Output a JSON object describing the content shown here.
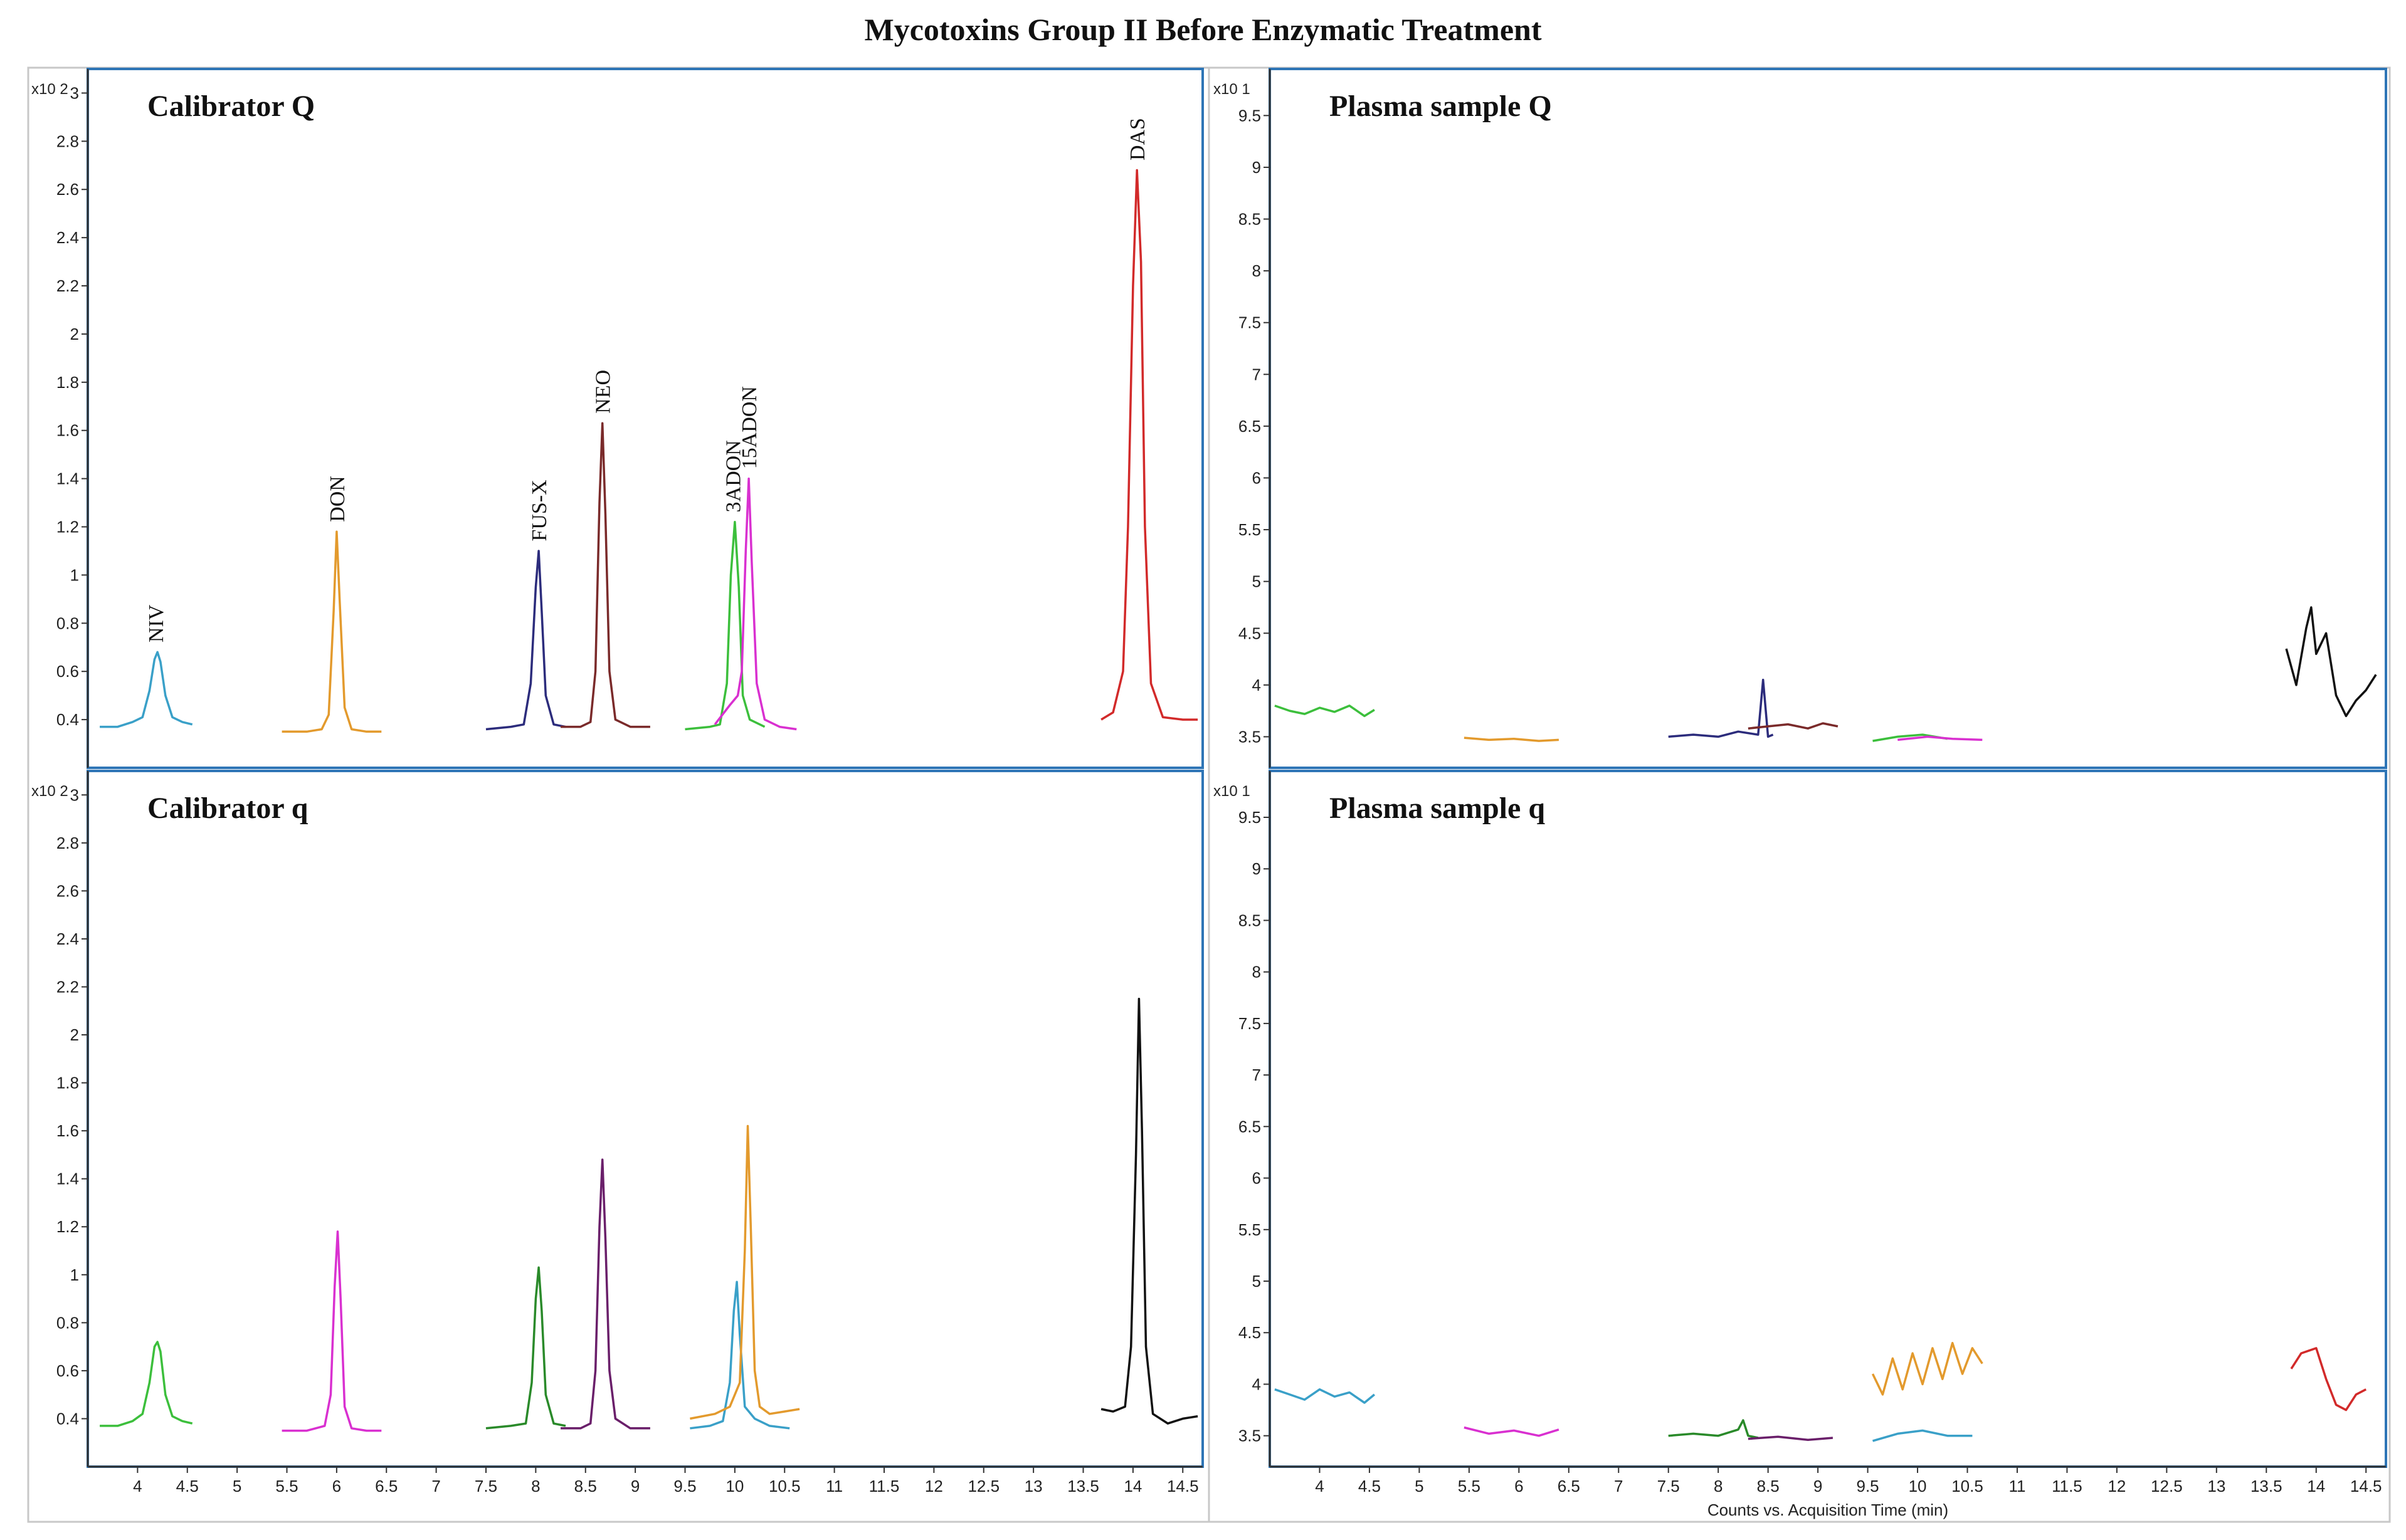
{
  "title": "Mycotoxins Group II Before Enzymatic Treatment",
  "chart_data": [
    {
      "type": "line",
      "title": "Calibrator Q",
      "y_multiplier": "x10 2",
      "xlim": [
        3.5,
        14.7
      ],
      "ylim": [
        0.2,
        3.1
      ],
      "x_ticks": [
        "4",
        "4.5",
        "5",
        "5.5",
        "6",
        "6.5",
        "7",
        "7.5",
        "8",
        "8.5",
        "9",
        "9.5",
        "10",
        "10.5",
        "11",
        "11.5",
        "12",
        "12.5",
        "13",
        "13.5",
        "14",
        "14.5"
      ],
      "y_ticks": [
        "0.4",
        "0.6",
        "0.8",
        "1",
        "1.2",
        "1.4",
        "1.6",
        "1.8",
        "2",
        "2.2",
        "2.4",
        "2.6",
        "2.8",
        "3"
      ],
      "xlabel": "",
      "series": [
        {
          "name": "NIV",
          "color": "#3aa0c8",
          "x": [
            3.62,
            3.8,
            3.95,
            4.05,
            4.12,
            4.17,
            4.2,
            4.23,
            4.28,
            4.35,
            4.45,
            4.55
          ],
          "y": [
            0.37,
            0.37,
            0.39,
            0.41,
            0.52,
            0.65,
            0.68,
            0.64,
            0.5,
            0.41,
            0.39,
            0.38
          ]
        },
        {
          "name": "DON",
          "color": "#e39a2d",
          "x": [
            5.45,
            5.7,
            5.85,
            5.92,
            5.97,
            6.0,
            6.03,
            6.08,
            6.15,
            6.3,
            6.45
          ],
          "y": [
            0.35,
            0.35,
            0.36,
            0.42,
            0.85,
            1.18,
            0.9,
            0.45,
            0.36,
            0.35,
            0.35
          ]
        },
        {
          "name": "FUS-X",
          "color": "#2c2c7c",
          "x": [
            7.5,
            7.75,
            7.88,
            7.95,
            8.0,
            8.03,
            8.06,
            8.1,
            8.18,
            8.3
          ],
          "y": [
            0.36,
            0.37,
            0.38,
            0.55,
            0.95,
            1.1,
            0.85,
            0.5,
            0.38,
            0.37
          ]
        },
        {
          "name": "NEO",
          "color": "#7a2a2a",
          "x": [
            8.25,
            8.45,
            8.55,
            8.6,
            8.64,
            8.67,
            8.7,
            8.74,
            8.8,
            8.95,
            9.15
          ],
          "y": [
            0.37,
            0.37,
            0.39,
            0.6,
            1.3,
            1.63,
            1.25,
            0.6,
            0.4,
            0.37,
            0.37
          ]
        },
        {
          "name": "3ADON",
          "color": "#3cbf3c",
          "x": [
            9.5,
            9.75,
            9.85,
            9.92,
            9.96,
            10.0,
            10.04,
            10.08,
            10.15,
            10.3
          ],
          "y": [
            0.36,
            0.37,
            0.38,
            0.55,
            1.0,
            1.22,
            0.95,
            0.5,
            0.4,
            0.37
          ]
        },
        {
          "name": "15ADON",
          "color": "#d930d0",
          "x": [
            9.8,
            9.95,
            10.03,
            10.07,
            10.11,
            10.14,
            10.17,
            10.22,
            10.3,
            10.45,
            10.62
          ],
          "y": [
            0.38,
            0.46,
            0.5,
            0.6,
            1.1,
            1.4,
            1.05,
            0.55,
            0.4,
            0.37,
            0.36
          ]
        },
        {
          "name": "DAS",
          "color": "#d22a2a",
          "x": [
            13.68,
            13.8,
            13.9,
            13.95,
            14.0,
            14.04,
            14.08,
            14.12,
            14.18,
            14.3,
            14.5,
            14.65
          ],
          "y": [
            0.4,
            0.43,
            0.6,
            1.2,
            2.2,
            2.68,
            2.3,
            1.2,
            0.55,
            0.41,
            0.4,
            0.4
          ]
        }
      ],
      "peak_labels": [
        {
          "text": "NIV",
          "x": 4.18,
          "y": 0.72
        },
        {
          "text": "DON",
          "x": 6.0,
          "y": 1.22
        },
        {
          "text": "FUS-X",
          "x": 8.03,
          "y": 1.14
        },
        {
          "text": "NEO",
          "x": 8.67,
          "y": 1.67
        },
        {
          "text": "3ADON",
          "x": 9.98,
          "y": 1.26
        },
        {
          "text": "15ADON",
          "x": 10.14,
          "y": 1.44
        },
        {
          "text": "DAS",
          "x": 14.04,
          "y": 2.72
        }
      ]
    },
    {
      "type": "line",
      "title": "Plasma sample Q",
      "y_multiplier": "x10 1",
      "xlim": [
        3.5,
        14.7
      ],
      "ylim": [
        3.2,
        9.95
      ],
      "x_ticks": [
        "4",
        "4.5",
        "5",
        "5.5",
        "6",
        "6.5",
        "7",
        "7.5",
        "8",
        "8.5",
        "9",
        "9.5",
        "10",
        "10.5",
        "11",
        "11.5",
        "12",
        "12.5",
        "13",
        "13.5",
        "14",
        "14.5"
      ],
      "y_ticks": [
        "3.5",
        "4",
        "4.5",
        "5",
        "5.5",
        "6",
        "6.5",
        "7",
        "7.5",
        "8",
        "8.5",
        "9",
        "9.5"
      ],
      "xlabel": "",
      "series": [
        {
          "color": "#3cbf3c",
          "x": [
            3.55,
            3.7,
            3.85,
            4.0,
            4.15,
            4.3,
            4.45,
            4.55
          ],
          "y": [
            3.8,
            3.75,
            3.72,
            3.78,
            3.74,
            3.8,
            3.7,
            3.76
          ]
        },
        {
          "color": "#e39a2d",
          "x": [
            5.45,
            5.7,
            5.95,
            6.2,
            6.4
          ],
          "y": [
            3.49,
            3.47,
            3.48,
            3.46,
            3.47
          ]
        },
        {
          "color": "#2c2c7c",
          "x": [
            7.5,
            7.75,
            8.0,
            8.2,
            8.4,
            8.45,
            8.5,
            8.55
          ],
          "y": [
            3.5,
            3.52,
            3.5,
            3.55,
            3.52,
            4.05,
            3.5,
            3.52
          ]
        },
        {
          "color": "#7a2a2a",
          "x": [
            8.3,
            8.5,
            8.7,
            8.9,
            9.05,
            9.2
          ],
          "y": [
            3.58,
            3.6,
            3.62,
            3.58,
            3.63,
            3.6
          ]
        },
        {
          "color": "#3cbf3c",
          "x": [
            9.55,
            9.8,
            10.05,
            10.3
          ],
          "y": [
            3.46,
            3.5,
            3.52,
            3.48
          ]
        },
        {
          "color": "#d930d0",
          "x": [
            9.8,
            10.1,
            10.35,
            10.65
          ],
          "y": [
            3.47,
            3.5,
            3.48,
            3.47
          ]
        },
        {
          "color": "#111111",
          "x": [
            13.7,
            13.8,
            13.9,
            13.95,
            14.0,
            14.1,
            14.2,
            14.3,
            14.4,
            14.5,
            14.6
          ],
          "y": [
            4.35,
            4.0,
            4.55,
            4.75,
            4.3,
            4.5,
            3.9,
            3.7,
            3.85,
            3.95,
            4.1
          ]
        }
      ],
      "peak_labels": []
    },
    {
      "type": "line",
      "title": "Calibrator q",
      "y_multiplier": "x10 2",
      "xlim": [
        3.5,
        14.7
      ],
      "ylim": [
        0.2,
        3.1
      ],
      "x_ticks": [
        "4",
        "4.5",
        "5",
        "5.5",
        "6",
        "6.5",
        "7",
        "7.5",
        "8",
        "8.5",
        "9",
        "9.5",
        "10",
        "10.5",
        "11",
        "11.5",
        "12",
        "12.5",
        "13",
        "13.5",
        "14",
        "14.5"
      ],
      "y_ticks": [
        "0.4",
        "0.6",
        "0.8",
        "1",
        "1.2",
        "1.4",
        "1.6",
        "1.8",
        "2",
        "2.2",
        "2.4",
        "2.6",
        "2.8",
        "3"
      ],
      "xlabel": "",
      "series": [
        {
          "color": "#3cbf3c",
          "x": [
            3.62,
            3.8,
            3.95,
            4.05,
            4.12,
            4.17,
            4.2,
            4.23,
            4.28,
            4.35,
            4.45,
            4.55
          ],
          "y": [
            0.37,
            0.37,
            0.39,
            0.42,
            0.55,
            0.7,
            0.72,
            0.68,
            0.5,
            0.41,
            0.39,
            0.38
          ]
        },
        {
          "color": "#d930d0",
          "x": [
            5.45,
            5.7,
            5.88,
            5.94,
            5.98,
            6.01,
            6.04,
            6.08,
            6.15,
            6.3,
            6.45
          ],
          "y": [
            0.35,
            0.35,
            0.37,
            0.5,
            0.95,
            1.18,
            0.9,
            0.45,
            0.36,
            0.35,
            0.35
          ]
        },
        {
          "color": "#2a8a2a",
          "x": [
            7.5,
            7.75,
            7.9,
            7.96,
            8.0,
            8.03,
            8.06,
            8.1,
            8.18,
            8.3
          ],
          "y": [
            0.36,
            0.37,
            0.38,
            0.55,
            0.9,
            1.03,
            0.85,
            0.5,
            0.38,
            0.37
          ]
        },
        {
          "color": "#6a1f6a",
          "x": [
            8.25,
            8.45,
            8.55,
            8.6,
            8.64,
            8.67,
            8.7,
            8.74,
            8.8,
            8.95,
            9.15
          ],
          "y": [
            0.36,
            0.36,
            0.38,
            0.6,
            1.2,
            1.48,
            1.15,
            0.6,
            0.4,
            0.36,
            0.36
          ]
        },
        {
          "color": "#3aa0c8",
          "x": [
            9.55,
            9.75,
            9.88,
            9.95,
            9.99,
            10.02,
            10.05,
            10.1,
            10.2,
            10.35,
            10.55
          ],
          "y": [
            0.36,
            0.37,
            0.39,
            0.55,
            0.85,
            0.97,
            0.75,
            0.45,
            0.4,
            0.37,
            0.36
          ]
        },
        {
          "color": "#e39a2d",
          "x": [
            9.55,
            9.8,
            9.95,
            10.05,
            10.1,
            10.13,
            10.16,
            10.2,
            10.25,
            10.35,
            10.5,
            10.65
          ],
          "y": [
            0.4,
            0.42,
            0.45,
            0.55,
            1.1,
            1.62,
            1.2,
            0.6,
            0.45,
            0.42,
            0.43,
            0.44
          ]
        },
        {
          "color": "#111111",
          "x": [
            13.68,
            13.8,
            13.92,
            13.98,
            14.03,
            14.06,
            14.09,
            14.13,
            14.2,
            14.35,
            14.5,
            14.65
          ],
          "y": [
            0.44,
            0.43,
            0.45,
            0.7,
            1.5,
            2.15,
            1.6,
            0.7,
            0.42,
            0.38,
            0.4,
            0.41
          ]
        }
      ],
      "peak_labels": []
    },
    {
      "type": "line",
      "title": "Plasma sample q",
      "y_multiplier": "x10 1",
      "xlim": [
        3.5,
        14.7
      ],
      "ylim": [
        3.2,
        9.95
      ],
      "x_ticks": [
        "4",
        "4.5",
        "5",
        "5.5",
        "6",
        "6.5",
        "7",
        "7.5",
        "8",
        "8.5",
        "9",
        "9.5",
        "10",
        "10.5",
        "11",
        "11.5",
        "12",
        "12.5",
        "13",
        "13.5",
        "14",
        "14.5"
      ],
      "y_ticks": [
        "3.5",
        "4",
        "4.5",
        "5",
        "5.5",
        "6",
        "6.5",
        "7",
        "7.5",
        "8",
        "8.5",
        "9",
        "9.5"
      ],
      "xlabel": "Counts vs. Acquisition Time (min)",
      "series": [
        {
          "color": "#3aa0c8",
          "x": [
            3.55,
            3.7,
            3.85,
            4.0,
            4.15,
            4.3,
            4.45,
            4.55
          ],
          "y": [
            3.95,
            3.9,
            3.85,
            3.95,
            3.88,
            3.92,
            3.82,
            3.9
          ]
        },
        {
          "color": "#d930d0",
          "x": [
            5.45,
            5.7,
            5.95,
            6.2,
            6.4
          ],
          "y": [
            3.58,
            3.52,
            3.55,
            3.5,
            3.56
          ]
        },
        {
          "color": "#2a8a2a",
          "x": [
            7.5,
            7.75,
            8.0,
            8.2,
            8.25,
            8.3,
            8.4
          ],
          "y": [
            3.5,
            3.52,
            3.5,
            3.56,
            3.65,
            3.5,
            3.48
          ]
        },
        {
          "color": "#6a1f6a",
          "x": [
            8.3,
            8.6,
            8.9,
            9.15
          ],
          "y": [
            3.47,
            3.49,
            3.46,
            3.48
          ]
        },
        {
          "color": "#e39a2d",
          "x": [
            9.55,
            9.65,
            9.75,
            9.85,
            9.95,
            10.05,
            10.15,
            10.25,
            10.35,
            10.45,
            10.55,
            10.65
          ],
          "y": [
            4.1,
            3.9,
            4.25,
            3.95,
            4.3,
            4.0,
            4.35,
            4.05,
            4.4,
            4.1,
            4.35,
            4.2
          ]
        },
        {
          "color": "#3aa0c8",
          "x": [
            9.55,
            9.8,
            10.05,
            10.3,
            10.55
          ],
          "y": [
            3.45,
            3.52,
            3.55,
            3.5,
            3.5
          ]
        },
        {
          "color": "#d22a2a",
          "x": [
            13.75,
            13.85,
            14.0,
            14.1,
            14.2,
            14.3,
            14.4,
            14.5
          ],
          "y": [
            4.15,
            4.3,
            4.35,
            4.05,
            3.8,
            3.75,
            3.9,
            3.95
          ]
        }
      ],
      "peak_labels": []
    }
  ]
}
